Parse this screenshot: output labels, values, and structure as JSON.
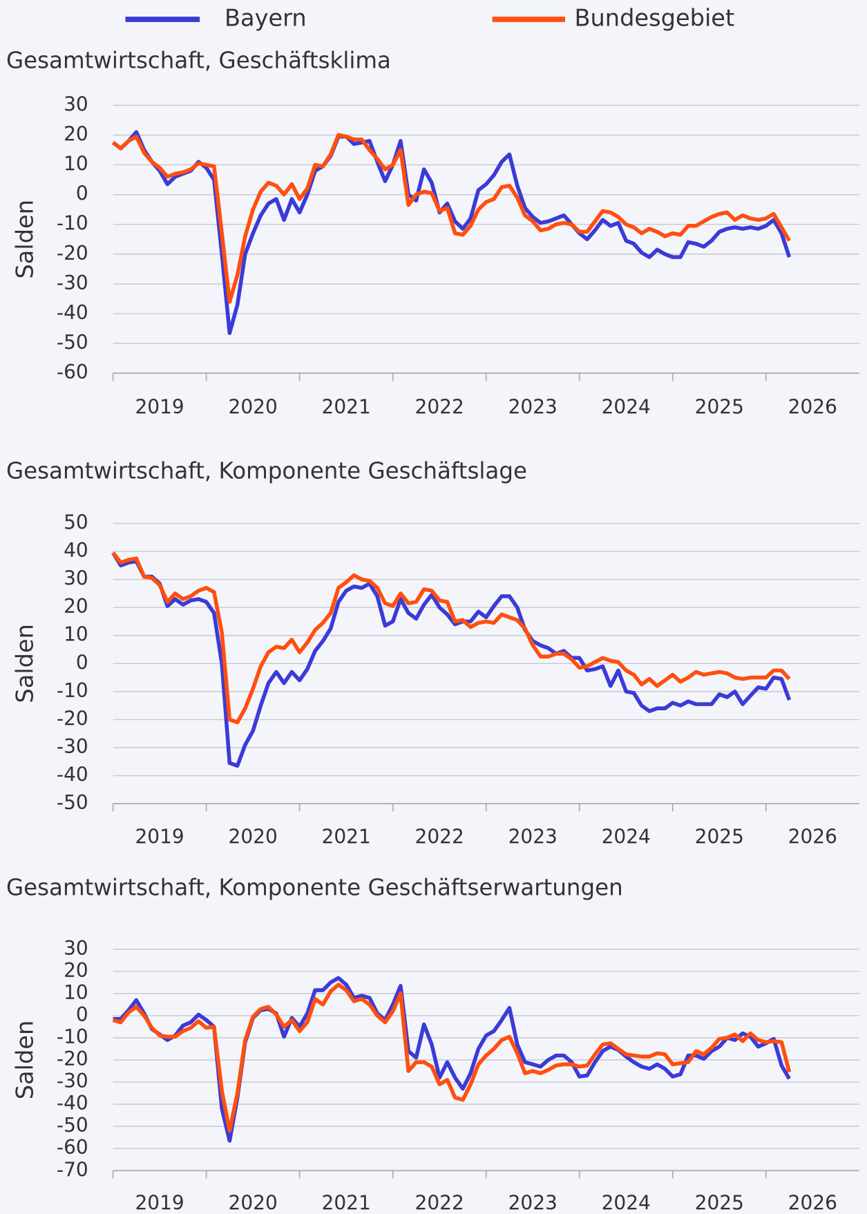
{
  "chart_data": [
    {
      "type": "line",
      "title": "Gesamtwirtschaft, Geschäftsklima",
      "ylabel": "Salden",
      "x": [
        "2019-01",
        "2019-02",
        "2019-03",
        "2019-04",
        "2019-05",
        "2019-06",
        "2019-07",
        "2019-08",
        "2019-09",
        "2019-10",
        "2019-11",
        "2019-12",
        "2020-01",
        "2020-02",
        "2020-03",
        "2020-04",
        "2020-05",
        "2020-06",
        "2020-07",
        "2020-08",
        "2020-09",
        "2020-10",
        "2020-11",
        "2020-12",
        "2021-01",
        "2021-02",
        "2021-03",
        "2021-04",
        "2021-05",
        "2021-06",
        "2021-07",
        "2021-08",
        "2021-09",
        "2021-10",
        "2021-11",
        "2021-12",
        "2022-01",
        "2022-02",
        "2022-03",
        "2022-04",
        "2022-05",
        "2022-06",
        "2022-07",
        "2022-08",
        "2022-09",
        "2022-10",
        "2022-11",
        "2022-12",
        "2023-01",
        "2023-02",
        "2023-03",
        "2023-04",
        "2023-05",
        "2023-06",
        "2023-07",
        "2023-08",
        "2023-09",
        "2023-10",
        "2023-11",
        "2023-12",
        "2024-01",
        "2024-02",
        "2024-03",
        "2024-04",
        "2024-05",
        "2024-06",
        "2024-07",
        "2024-08",
        "2024-09",
        "2024-10",
        "2024-11",
        "2024-12",
        "2025-01",
        "2025-02",
        "2025-03",
        "2025-04",
        "2025-05",
        "2025-06",
        "2025-07",
        "2025-08",
        "2025-09",
        "2025-10",
        "2025-11",
        "2025-12",
        "2026-01",
        "2026-02",
        "2026-03",
        "2026-04"
      ],
      "series": [
        {
          "name": "Bayern",
          "color": "#3b3bd6",
          "values": [
            17.5,
            15.5,
            18,
            21,
            15,
            11,
            8,
            3.5,
            6,
            7,
            8,
            11,
            9,
            5,
            -20,
            -46.5,
            -37,
            -20,
            -13,
            -7,
            -3,
            -1.5,
            -8.5,
            -1.5,
            -6,
            0,
            8,
            9.5,
            13,
            19.5,
            19.5,
            17,
            17.5,
            18,
            11,
            4.5,
            10,
            18,
            0,
            -2,
            8.5,
            4,
            -6,
            -3,
            -9,
            -11.5,
            -8,
            1.5,
            3.5,
            6.5,
            11,
            13.5,
            3,
            -4.5,
            -7.5,
            -9.5,
            -9,
            -8,
            -7,
            -10,
            -13,
            -15,
            -12,
            -8.5,
            -10.5,
            -9.5,
            -15.5,
            -16.5,
            -19.5,
            -21,
            -18.5,
            -20,
            -21,
            -21,
            -16,
            -16.5,
            -17.5,
            -15.5,
            -12.5,
            -11.5,
            -11,
            -11.5,
            -11,
            -11.5,
            -10.5,
            -8.5,
            -13,
            -21
          ]
        },
        {
          "name": "Bundesgebiet",
          "color": "#ff4f0f",
          "values": [
            17.5,
            15.5,
            18,
            19.5,
            14,
            11,
            9,
            6,
            7,
            7.5,
            8.5,
            10.5,
            10,
            9.5,
            -13,
            -36,
            -27,
            -14,
            -5,
            1,
            4,
            3,
            0,
            3.5,
            -1.5,
            2,
            10,
            9.5,
            13.5,
            20,
            19.5,
            18.5,
            18.5,
            15,
            12,
            8.5,
            10,
            15,
            -3.5,
            0,
            1,
            0.5,
            -5.5,
            -4.5,
            -13,
            -13.5,
            -10.5,
            -5,
            -2.5,
            -1.5,
            2.5,
            3,
            -1,
            -7,
            -9,
            -12,
            -11.5,
            -10,
            -9.5,
            -10,
            -12.5,
            -12.5,
            -9,
            -5.5,
            -6,
            -7.5,
            -10,
            -11,
            -13,
            -11.5,
            -12.5,
            -14,
            -13,
            -13.5,
            -10.5,
            -10.5,
            -9,
            -7.5,
            -6.5,
            -6,
            -8.5,
            -7,
            -8,
            -8.5,
            -8,
            -6.5,
            -11,
            -15.5
          ]
        }
      ],
      "xlim": [
        2019,
        2027
      ],
      "xticks": [
        2019,
        2020,
        2021,
        2022,
        2023,
        2024,
        2025,
        2026
      ],
      "ylim": [
        -60,
        30
      ],
      "yticks": [
        -60,
        -50,
        -40,
        -30,
        -20,
        -10,
        0,
        10,
        20,
        30
      ],
      "grid": true
    },
    {
      "type": "line",
      "title": "Gesamtwirtschaft, Komponente Geschäftslage",
      "ylabel": "Salden",
      "x": [
        "2019-01",
        "2019-02",
        "2019-03",
        "2019-04",
        "2019-05",
        "2019-06",
        "2019-07",
        "2019-08",
        "2019-09",
        "2019-10",
        "2019-11",
        "2019-12",
        "2020-01",
        "2020-02",
        "2020-03",
        "2020-04",
        "2020-05",
        "2020-06",
        "2020-07",
        "2020-08",
        "2020-09",
        "2020-10",
        "2020-11",
        "2020-12",
        "2021-01",
        "2021-02",
        "2021-03",
        "2021-04",
        "2021-05",
        "2021-06",
        "2021-07",
        "2021-08",
        "2021-09",
        "2021-10",
        "2021-11",
        "2021-12",
        "2022-01",
        "2022-02",
        "2022-03",
        "2022-04",
        "2022-05",
        "2022-06",
        "2022-07",
        "2022-08",
        "2022-09",
        "2022-10",
        "2022-11",
        "2022-12",
        "2023-01",
        "2023-02",
        "2023-03",
        "2023-04",
        "2023-05",
        "2023-06",
        "2023-07",
        "2023-08",
        "2023-09",
        "2023-10",
        "2023-11",
        "2023-12",
        "2024-01",
        "2024-02",
        "2024-03",
        "2024-04",
        "2024-05",
        "2024-06",
        "2024-07",
        "2024-08",
        "2024-09",
        "2024-10",
        "2024-11",
        "2024-12",
        "2025-01",
        "2025-02",
        "2025-03",
        "2025-04",
        "2025-05",
        "2025-06",
        "2025-07",
        "2025-08",
        "2025-09",
        "2025-10",
        "2025-11",
        "2025-12",
        "2026-01",
        "2026-02",
        "2026-03",
        "2026-04"
      ],
      "series": [
        {
          "name": "Bayern",
          "color": "#3b3bd6",
          "values": [
            39.5,
            35,
            36,
            36.5,
            31,
            31,
            28.5,
            20.5,
            23,
            21,
            22.5,
            23,
            22,
            18,
            0,
            -35.5,
            -36.5,
            -29,
            -24,
            -15,
            -7,
            -3,
            -7,
            -3,
            -6,
            -2,
            4.5,
            8,
            12.5,
            22,
            26,
            27.5,
            27,
            28.5,
            24,
            13.5,
            15,
            23,
            18,
            16,
            21,
            24.5,
            20,
            17.5,
            14,
            15,
            15,
            18.5,
            16.5,
            20.5,
            24,
            24,
            20,
            12,
            8,
            6.5,
            5.5,
            3.5,
            4.5,
            2,
            2,
            -2.5,
            -2,
            -1,
            -8,
            -2.5,
            -10,
            -10.5,
            -15,
            -17,
            -16,
            -16,
            -14,
            -15,
            -13.5,
            -14.5,
            -14.5,
            -14.5,
            -11,
            -12,
            -10,
            -14.5,
            -11.5,
            -8.5,
            -9,
            -5,
            -5.5,
            -13
          ]
        },
        {
          "name": "Bundesgebiet",
          "color": "#ff4f0f",
          "values": [
            39.5,
            36,
            37,
            37.5,
            31,
            30.5,
            28,
            22,
            25,
            23,
            24,
            26,
            27,
            25.5,
            11,
            -20,
            -21,
            -16,
            -9,
            -1,
            4,
            6,
            5.5,
            8.5,
            4,
            7.5,
            12,
            14.5,
            18,
            27,
            29,
            31.5,
            30,
            29.5,
            27,
            21.5,
            20.5,
            25,
            21.5,
            22,
            26.5,
            26,
            22.5,
            22,
            15,
            15.5,
            13,
            14.5,
            15,
            14.5,
            17.5,
            16.5,
            15.5,
            12.5,
            6.5,
            2.5,
            2.5,
            3.5,
            3.5,
            1.5,
            -1.5,
            -1,
            0.5,
            2,
            1,
            0.5,
            -2.5,
            -4,
            -7.5,
            -5.5,
            -8,
            -6,
            -4,
            -6.5,
            -5,
            -3,
            -4,
            -3.5,
            -3,
            -3.5,
            -5,
            -5.5,
            -5,
            -5,
            -5,
            -2.5,
            -2.5,
            -5.5
          ]
        }
      ],
      "xlim": [
        2019,
        2027
      ],
      "xticks": [
        2019,
        2020,
        2021,
        2022,
        2023,
        2024,
        2025,
        2026
      ],
      "ylim": [
        -50,
        50
      ],
      "yticks": [
        -50,
        -40,
        -30,
        -20,
        -10,
        0,
        10,
        20,
        30,
        40,
        50
      ],
      "grid": true
    },
    {
      "type": "line",
      "title": "Gesamtwirtschaft, Komponente Geschäftserwartungen",
      "ylabel": "Salden",
      "x": [
        "2019-01",
        "2019-02",
        "2019-03",
        "2019-04",
        "2019-05",
        "2019-06",
        "2019-07",
        "2019-08",
        "2019-09",
        "2019-10",
        "2019-11",
        "2019-12",
        "2020-01",
        "2020-02",
        "2020-03",
        "2020-04",
        "2020-05",
        "2020-06",
        "2020-07",
        "2020-08",
        "2020-09",
        "2020-10",
        "2020-11",
        "2020-12",
        "2021-01",
        "2021-02",
        "2021-03",
        "2021-04",
        "2021-05",
        "2021-06",
        "2021-07",
        "2021-08",
        "2021-09",
        "2021-10",
        "2021-11",
        "2021-12",
        "2022-01",
        "2022-02",
        "2022-03",
        "2022-04",
        "2022-05",
        "2022-06",
        "2022-07",
        "2022-08",
        "2022-09",
        "2022-10",
        "2022-11",
        "2022-12",
        "2023-01",
        "2023-02",
        "2023-03",
        "2023-04",
        "2023-05",
        "2023-06",
        "2023-07",
        "2023-08",
        "2023-09",
        "2023-10",
        "2023-11",
        "2023-12",
        "2024-01",
        "2024-02",
        "2024-03",
        "2024-04",
        "2024-05",
        "2024-06",
        "2024-07",
        "2024-08",
        "2024-09",
        "2024-10",
        "2024-11",
        "2024-12",
        "2025-01",
        "2025-02",
        "2025-03",
        "2025-04",
        "2025-05",
        "2025-06",
        "2025-07",
        "2025-08",
        "2025-09",
        "2025-10",
        "2025-11",
        "2025-12",
        "2026-01",
        "2026-02",
        "2026-03",
        "2026-04"
      ],
      "series": [
        {
          "name": "Bayern",
          "color": "#3b3bd6",
          "values": [
            -1.5,
            -1.5,
            2.5,
            7,
            1,
            -6,
            -8.5,
            -11,
            -9,
            -4.5,
            -3,
            0.5,
            -2,
            -5,
            -42,
            -56.5,
            -37,
            -12,
            -1,
            2.5,
            3,
            1,
            -9.5,
            -1,
            -5,
            1,
            11.5,
            11.5,
            15,
            17,
            14,
            8,
            9,
            8,
            1,
            -2,
            5,
            13.5,
            -16,
            -19,
            -4,
            -13,
            -28,
            -21,
            -28,
            -33,
            -26,
            -15,
            -9,
            -7,
            -2,
            3.5,
            -13,
            -21,
            -22,
            -23,
            -20,
            -18,
            -18,
            -21,
            -27.5,
            -27,
            -21,
            -16,
            -14,
            -15.5,
            -18.5,
            -21,
            -23,
            -24,
            -22,
            -24,
            -27.5,
            -26.5,
            -18,
            -18,
            -19.5,
            -16,
            -14,
            -10,
            -11,
            -8,
            -9.5,
            -14,
            -12.5,
            -10.5,
            -22.5,
            -28.5
          ]
        },
        {
          "name": "Bundesgebiet",
          "color": "#ff4f0f",
          "values": [
            -2,
            -3,
            1.5,
            4,
            0,
            -5.5,
            -9,
            -9.5,
            -9.5,
            -7,
            -5.5,
            -2.5,
            -5.5,
            -5,
            -34,
            -52,
            -35,
            -11,
            -0.5,
            3,
            4,
            0.5,
            -5,
            -2,
            -7,
            -3,
            7.5,
            5,
            11,
            14,
            11.5,
            6.5,
            7.5,
            5,
            0,
            -3,
            2,
            10,
            -25,
            -21,
            -21,
            -23,
            -31,
            -29,
            -37,
            -38,
            -31,
            -22,
            -18,
            -15,
            -11,
            -9.5,
            -17,
            -26,
            -25,
            -26,
            -24.5,
            -22.5,
            -22,
            -22,
            -23,
            -22.5,
            -17.5,
            -13,
            -12.5,
            -15,
            -17.5,
            -18,
            -18.5,
            -18.5,
            -17,
            -17.5,
            -22,
            -21.5,
            -21,
            -16,
            -17.5,
            -14.5,
            -10.5,
            -10,
            -8.5,
            -11.5,
            -8,
            -11,
            -12,
            -11.5,
            -12,
            -25.5
          ]
        }
      ],
      "xlim": [
        2019,
        2027
      ],
      "xticks": [
        2019,
        2020,
        2021,
        2022,
        2023,
        2024,
        2025,
        2026
      ],
      "ylim": [
        -70,
        30
      ],
      "yticks": [
        -70,
        -60,
        -50,
        -40,
        -30,
        -20,
        -10,
        0,
        10,
        20,
        30
      ],
      "grid": true
    }
  ]
}
